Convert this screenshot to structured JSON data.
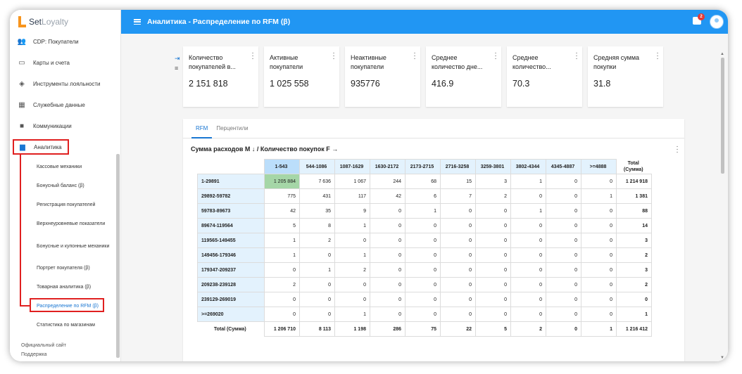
{
  "app": {
    "logo_main": "Set",
    "logo_thin": "Loyalty"
  },
  "header": {
    "title": "Аналитика - Распределение по RFM (β)",
    "badge": "2"
  },
  "sidebar": {
    "items": [
      {
        "label": "CDP: Покупатели",
        "icon": "people-icon"
      },
      {
        "label": "Карты и счета",
        "icon": "card-icon"
      },
      {
        "label": "Инструменты лояльности",
        "icon": "tag-icon"
      },
      {
        "label": "Служебные данные",
        "icon": "clipboard-icon"
      },
      {
        "label": "Коммуникации",
        "icon": "chat-icon"
      }
    ],
    "analytics": {
      "label": "Аналитика",
      "icon": "bar-chart-icon"
    },
    "sub_items": [
      "Кассовые механики",
      "Бонусный баланс (β)",
      "Регистрация покупателей",
      "Верхнеуровневые показатели",
      "Бонусные и купонные механики",
      "Портрет покупателя (β)",
      "Товарная аналитика (β)",
      "Распределение по RFM (β)",
      "Статистика по магазинам"
    ],
    "footer": [
      "Официальный сайт",
      "Поддержка"
    ]
  },
  "cards": [
    {
      "title": "Количество покупателей в...",
      "value": "2 151 818"
    },
    {
      "title": "Активные покупатели",
      "value": "1 025 558"
    },
    {
      "title": "Неактивные покупатели",
      "value": "935776"
    },
    {
      "title": "Среднее количество дне...",
      "value": "416.9"
    },
    {
      "title": "Среднее количество...",
      "value": "70.3"
    },
    {
      "title": "Средняя сумма покупки",
      "value": "31.8"
    }
  ],
  "tabs": [
    "RFM",
    "Перцентили"
  ],
  "table": {
    "title": "Сумма расходов M ↓ / Количество покупок F →",
    "columns": [
      "1-543",
      "544-1086",
      "1087-1629",
      "1630-2172",
      "2173-2715",
      "2716-3258",
      "3259-3801",
      "3802-4344",
      "4345-4887",
      ">=4888"
    ],
    "total_header": "Total (Сумма)",
    "rows": [
      {
        "label": "1-29891",
        "cells": [
          "1 205 884",
          "7 636",
          "1 067",
          "244",
          "68",
          "15",
          "3",
          "1",
          "0",
          "0"
        ],
        "total": "1 214 918"
      },
      {
        "label": "29892-59782",
        "cells": [
          "775",
          "431",
          "117",
          "42",
          "6",
          "7",
          "2",
          "0",
          "0",
          "1"
        ],
        "total": "1 381"
      },
      {
        "label": "59783-89673",
        "cells": [
          "42",
          "35",
          "9",
          "0",
          "1",
          "0",
          "0",
          "1",
          "0",
          "0"
        ],
        "total": "88"
      },
      {
        "label": "89674-119564",
        "cells": [
          "5",
          "8",
          "1",
          "0",
          "0",
          "0",
          "0",
          "0",
          "0",
          "0"
        ],
        "total": "14"
      },
      {
        "label": "119565-149455",
        "cells": [
          "1",
          "2",
          "0",
          "0",
          "0",
          "0",
          "0",
          "0",
          "0",
          "0"
        ],
        "total": "3"
      },
      {
        "label": "149456-179346",
        "cells": [
          "1",
          "0",
          "1",
          "0",
          "0",
          "0",
          "0",
          "0",
          "0",
          "0"
        ],
        "total": "2"
      },
      {
        "label": "179347-209237",
        "cells": [
          "0",
          "1",
          "2",
          "0",
          "0",
          "0",
          "0",
          "0",
          "0",
          "0"
        ],
        "total": "3"
      },
      {
        "label": "209238-239128",
        "cells": [
          "2",
          "0",
          "0",
          "0",
          "0",
          "0",
          "0",
          "0",
          "0",
          "0"
        ],
        "total": "2"
      },
      {
        "label": "239129-269019",
        "cells": [
          "0",
          "0",
          "0",
          "0",
          "0",
          "0",
          "0",
          "0",
          "0",
          "0"
        ],
        "total": "0"
      },
      {
        "label": ">=269020",
        "cells": [
          "0",
          "0",
          "1",
          "0",
          "0",
          "0",
          "0",
          "0",
          "0",
          "0"
        ],
        "total": "1"
      }
    ],
    "total_row": {
      "label": "Total (Сумма)",
      "cells": [
        "1 206 710",
        "8 113",
        "1 198",
        "286",
        "75",
        "22",
        "5",
        "2",
        "0",
        "1"
      ],
      "total": "1 216 412"
    }
  },
  "colors": {
    "header": "#2196f3",
    "accent": "#1976d2",
    "highlight": "#e02020",
    "top_cell": "#a5d6a7"
  }
}
